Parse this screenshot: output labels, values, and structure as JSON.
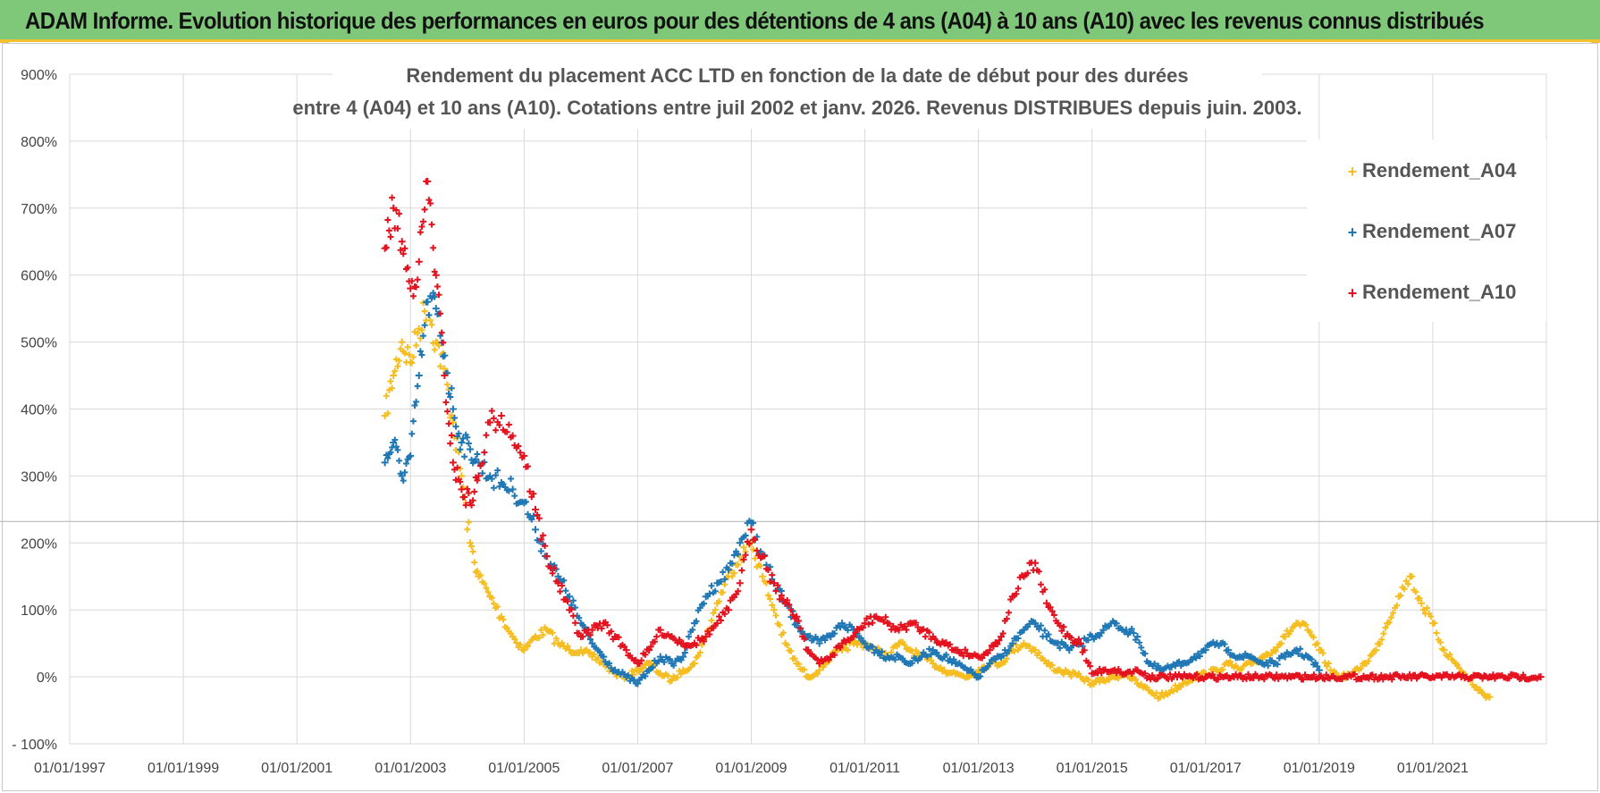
{
  "page_title": "ADAM Informe. Evolution historique des performances en euros pour des détentions de 4 ans (A04) à 10 ans (A10) avec les revenus connus distribués",
  "chart_data": {
    "type": "scatter",
    "title_line1": "Rendement du placement ACC LTD en fonction de la date de début pour des durées",
    "title_line2": "entre 4 (A04) et 10 ans (A10). Cotations entre juil 2002 et janv. 2026. Revenus DISTRIBUES depuis juin. 2003.",
    "xlabel": "",
    "ylabel": "",
    "x_range": [
      "1997-01-01",
      "2023-01-01"
    ],
    "ylim": [
      -100,
      900
    ],
    "y_ticks": [
      -100,
      0,
      100,
      200,
      300,
      400,
      500,
      600,
      700,
      800,
      900
    ],
    "y_tick_labels": [
      "- 100%",
      "0%",
      "100%",
      "200%",
      "300%",
      "400%",
      "500%",
      "600%",
      "700%",
      "800%",
      "900%"
    ],
    "x_tick_labels": [
      "01/01/1997",
      "01/01/1999",
      "01/01/2001",
      "01/01/2003",
      "01/01/2005",
      "01/01/2007",
      "01/01/2009",
      "01/01/2011",
      "01/01/2013",
      "01/01/2015",
      "01/01/2017",
      "01/01/2019",
      "01/01/2021"
    ],
    "x_tick_years": [
      1997,
      1999,
      2001,
      2003,
      2005,
      2007,
      2009,
      2011,
      2013,
      2015,
      2017,
      2019,
      2021
    ],
    "grid": true,
    "marker": "+",
    "legend_position": "top-right",
    "reference_line_y": 232,
    "series": [
      {
        "name": "Rendement_A04",
        "color": "#f5bd1f",
        "x": [
          2002.55,
          2002.7,
          2002.85,
          2003.0,
          2003.15,
          2003.3,
          2003.45,
          2003.6,
          2003.75,
          2003.9,
          2004.05,
          2004.2,
          2004.4,
          2004.6,
          2004.8,
          2005.0,
          2005.2,
          2005.4,
          2005.6,
          2005.8,
          2006.0,
          2006.2,
          2006.4,
          2006.6,
          2006.8,
          2007.0,
          2007.2,
          2007.4,
          2007.6,
          2007.8,
          2008.0,
          2008.2,
          2008.4,
          2008.6,
          2008.8,
          2009.0,
          2009.2,
          2009.4,
          2009.6,
          2009.8,
          2010.0,
          2010.2,
          2010.4,
          2010.6,
          2010.8,
          2011.0,
          2011.2,
          2011.4,
          2011.6,
          2011.8,
          2012.0,
          2012.2,
          2012.4,
          2012.6,
          2012.8,
          2013.0,
          2013.2,
          2013.4,
          2013.6,
          2013.8,
          2014.0,
          2014.2,
          2014.4,
          2014.6,
          2014.8,
          2015.0,
          2015.2,
          2015.4,
          2015.6,
          2015.8,
          2016.0,
          2016.2,
          2016.4,
          2016.6,
          2016.8,
          2017.0,
          2017.2,
          2017.4,
          2017.6,
          2017.8,
          2018.0,
          2018.2,
          2018.4,
          2018.6,
          2018.8,
          2019.0,
          2019.2,
          2019.4,
          2019.6,
          2019.8,
          2020.0,
          2020.2,
          2020.4,
          2020.6,
          2020.8,
          2021.0,
          2021.2,
          2021.4,
          2021.6,
          2021.8,
          2022.0
        ],
        "y": [
          390,
          450,
          500,
          470,
          520,
          560,
          500,
          460,
          380,
          300,
          200,
          150,
          120,
          90,
          60,
          40,
          60,
          70,
          50,
          40,
          40,
          30,
          20,
          5,
          0,
          10,
          20,
          5,
          -5,
          10,
          20,
          60,
          110,
          150,
          180,
          200,
          150,
          100,
          50,
          20,
          0,
          10,
          30,
          40,
          50,
          50,
          40,
          30,
          50,
          40,
          30,
          20,
          10,
          5,
          0,
          10,
          20,
          20,
          40,
          50,
          40,
          20,
          10,
          5,
          0,
          -10,
          -5,
          0,
          5,
          -10,
          -20,
          -30,
          -20,
          -10,
          0,
          5,
          10,
          20,
          10,
          20,
          30,
          40,
          60,
          80,
          70,
          40,
          10,
          0,
          5,
          20,
          40,
          80,
          120,
          150,
          110,
          80,
          40,
          20,
          0,
          -20,
          -30
        ]
      },
      {
        "name": "Rendement_A07",
        "color": "#1f77b4",
        "x": [
          2002.55,
          2002.7,
          2002.85,
          2003.0,
          2003.15,
          2003.3,
          2003.45,
          2003.6,
          2003.75,
          2003.9,
          2004.05,
          2004.2,
          2004.4,
          2004.6,
          2004.8,
          2005.0,
          2005.2,
          2005.4,
          2005.6,
          2005.8,
          2006.0,
          2006.2,
          2006.4,
          2006.6,
          2006.8,
          2007.0,
          2007.2,
          2007.4,
          2007.6,
          2007.8,
          2008.0,
          2008.2,
          2008.4,
          2008.6,
          2008.8,
          2009.0,
          2009.2,
          2009.4,
          2009.6,
          2009.8,
          2010.0,
          2010.2,
          2010.4,
          2010.6,
          2010.8,
          2011.0,
          2011.2,
          2011.4,
          2011.6,
          2011.8,
          2012.0,
          2012.2,
          2012.4,
          2012.6,
          2012.8,
          2013.0,
          2013.2,
          2013.4,
          2013.6,
          2013.8,
          2014.0,
          2014.2,
          2014.4,
          2014.6,
          2014.8,
          2015.0,
          2015.2,
          2015.4,
          2015.6,
          2015.8,
          2016.0,
          2016.2,
          2016.4,
          2016.6,
          2016.8,
          2017.0,
          2017.2,
          2017.4,
          2017.6,
          2017.8,
          2018.0,
          2018.2,
          2018.4,
          2018.6,
          2018.8,
          2019.0
        ],
        "y": [
          320,
          350,
          300,
          330,
          450,
          560,
          550,
          480,
          400,
          350,
          340,
          320,
          300,
          290,
          280,
          260,
          220,
          180,
          150,
          120,
          80,
          50,
          30,
          10,
          0,
          -10,
          10,
          30,
          20,
          30,
          80,
          120,
          140,
          160,
          200,
          230,
          180,
          140,
          110,
          80,
          60,
          50,
          60,
          80,
          70,
          50,
          40,
          30,
          30,
          20,
          30,
          40,
          30,
          20,
          10,
          0,
          20,
          30,
          50,
          70,
          80,
          60,
          50,
          40,
          50,
          60,
          70,
          80,
          70,
          60,
          20,
          10,
          15,
          20,
          30,
          40,
          50,
          40,
          30,
          30,
          20,
          20,
          30,
          40,
          30,
          10
        ]
      },
      {
        "name": "Rendement_A10",
        "color": "#e3121f",
        "x": [
          2002.55,
          2002.7,
          2002.85,
          2003.0,
          2003.15,
          2003.3,
          2003.45,
          2003.6,
          2003.75,
          2003.9,
          2004.05,
          2004.2,
          2004.4,
          2004.6,
          2004.8,
          2005.0,
          2005.2,
          2005.4,
          2005.6,
          2005.8,
          2006.0,
          2006.2,
          2006.4,
          2006.6,
          2006.8,
          2007.0,
          2007.2,
          2007.4,
          2007.6,
          2007.8,
          2008.0,
          2008.2,
          2008.4,
          2008.6,
          2008.8,
          2009.0,
          2009.2,
          2009.4,
          2009.6,
          2009.8,
          2010.0,
          2010.2,
          2010.4,
          2010.6,
          2010.8,
          2011.0,
          2011.2,
          2011.4,
          2011.6,
          2011.8,
          2012.0,
          2012.2,
          2012.4,
          2012.6,
          2012.8,
          2013.0,
          2013.2,
          2013.4,
          2013.6,
          2013.8,
          2014.0,
          2014.2,
          2014.4,
          2014.6,
          2014.8,
          2015.0,
          2015.2,
          2015.4,
          2015.6,
          2015.8,
          2016.0,
          2016.5,
          2017.0,
          2017.5,
          2018.0,
          2018.5,
          2019.0,
          2019.5,
          2020.0,
          2020.5,
          2021.0,
          2021.5,
          2022.0,
          2022.5,
          2022.9
        ],
        "y": [
          640,
          700,
          650,
          580,
          620,
          740,
          600,
          450,
          320,
          280,
          260,
          300,
          380,
          390,
          360,
          330,
          250,
          180,
          140,
          100,
          60,
          70,
          80,
          60,
          40,
          20,
          40,
          70,
          60,
          50,
          50,
          60,
          80,
          100,
          140,
          220,
          180,
          140,
          110,
          90,
          40,
          20,
          30,
          50,
          60,
          80,
          90,
          80,
          70,
          80,
          70,
          60,
          50,
          40,
          35,
          30,
          40,
          60,
          120,
          150,
          170,
          110,
          80,
          60,
          50,
          5,
          10,
          10,
          5,
          10,
          0,
          0,
          0,
          0,
          0,
          0,
          0,
          0,
          0,
          0,
          0,
          0,
          0,
          0,
          0
        ]
      }
    ]
  }
}
